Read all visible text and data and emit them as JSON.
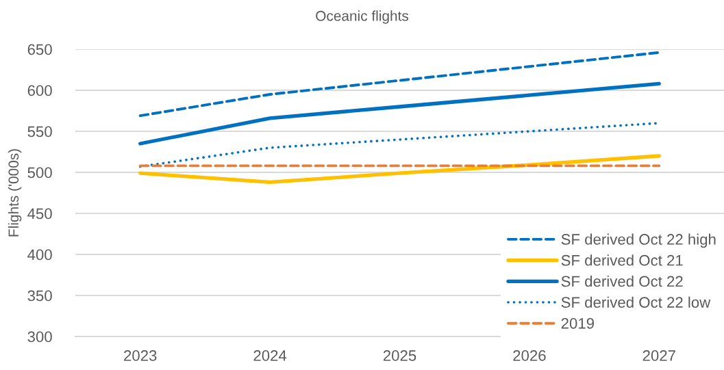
{
  "chart_data": {
    "type": "line",
    "title": "Oceanic flights",
    "ylabel": "Flights ('000s)",
    "categories": [
      "2023",
      "2024",
      "2025",
      "2026",
      "2027"
    ],
    "ylim": [
      300,
      650
    ],
    "yticks": [
      300,
      350,
      400,
      450,
      500,
      550,
      600,
      650
    ],
    "grid": "y",
    "legend": "bottom right",
    "series": [
      {
        "name": "SF derived Oct 22 high",
        "color": "#0070c0",
        "line_style": "dashed",
        "values": [
          569,
          595,
          612,
          629,
          646
        ]
      },
      {
        "name": "SF derived Oct 21",
        "color": "#ffc000",
        "line_style": "solid",
        "values": [
          499,
          488,
          499,
          509,
          520
        ]
      },
      {
        "name": "SF derived Oct 22",
        "color": "#0070c0",
        "line_style": "solid",
        "values": [
          535,
          566,
          580,
          594,
          608
        ]
      },
      {
        "name": "SF derived Oct 22 low",
        "color": "#0070c0",
        "line_style": "dotted",
        "values": [
          507,
          530,
          540,
          550,
          560
        ]
      },
      {
        "name": "2019",
        "color": "#ed7d31",
        "line_style": "dashed",
        "values": [
          508,
          508,
          508,
          508,
          508
        ]
      }
    ]
  }
}
